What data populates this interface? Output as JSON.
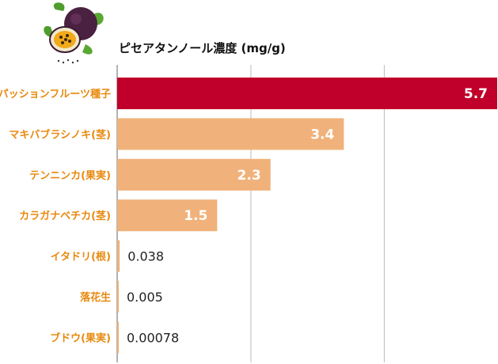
{
  "chart_data": {
    "type": "bar",
    "orientation": "horizontal",
    "title": "ピセアタンノール濃度 (mg/g)",
    "categories": [
      "パッションフルーツ種子",
      "マキバブラシノキ(茎)",
      "テンニンカ(果実)",
      "カラガナベチカ(茎)",
      "イタドリ(根)",
      "落花生",
      "ブドウ(果実)"
    ],
    "values": [
      5.7,
      3.4,
      2.3,
      1.5,
      0.038,
      0.005,
      0.00078
    ],
    "value_labels": [
      "5.7",
      "3.4",
      "2.3",
      "1.5",
      "0.038",
      "0.005",
      "0.00078"
    ],
    "xlim": [
      0,
      5.7
    ],
    "grid": true,
    "legend": "none"
  },
  "colors": {
    "highlight_bar": "#c0002a",
    "bar": "#f0b27a",
    "category_text": "#e8890f",
    "grid": "#bbbbbb"
  },
  "icons": {
    "logo": "passion-fruit-icon"
  }
}
